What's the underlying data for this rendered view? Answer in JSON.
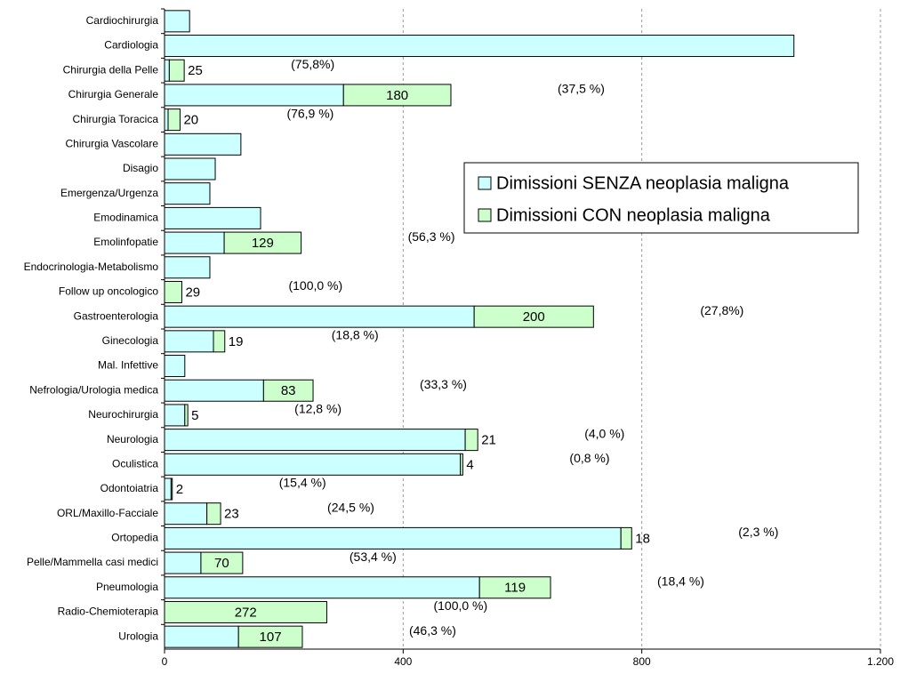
{
  "chart_data": {
    "type": "bar",
    "orientation": "horizontal",
    "stacked": true,
    "categories": [
      "Cardiochirurgia",
      "Cardiologia",
      "Chirurgia della Pelle",
      "Chirurgia Generale",
      "Chirurgia Toracica",
      "Chirurgia Vascolare",
      "Disagio",
      "Emergenza/Urgenza",
      "Emodinamica",
      "Emolinfopatie",
      "Endocrinologia-Metabolismo",
      "Follow up oncologico",
      "Gastroenterologia",
      "Ginecologia",
      "Mal. Infettive",
      "Nefrologia/Urologia medica",
      "Neurochirurgia",
      "Neurologia",
      "Oculistica",
      "Odontoiatria",
      "ORL/Maxillo-Facciale",
      "Ortopedia",
      "Pelle/Mammella casi medici",
      "Pneumologia",
      "Radio-Chemioterapia",
      "Urologia"
    ],
    "series": [
      {
        "name": "Dimissioni SENZA neoplasia maligna",
        "color": "#ccffff",
        "values": [
          42,
          1055,
          8,
          300,
          6,
          128,
          85,
          76,
          161,
          100,
          76,
          0,
          519,
          82,
          34,
          166,
          34,
          504,
          496,
          11,
          71,
          765,
          61,
          528,
          0,
          124
        ]
      },
      {
        "name": "Dimissioni CON neoplasia maligna",
        "color": "#ccffcc",
        "values": [
          null,
          null,
          25,
          180,
          20,
          null,
          null,
          null,
          null,
          129,
          null,
          29,
          200,
          19,
          null,
          83,
          5,
          21,
          4,
          2,
          23,
          18,
          70,
          119,
          272,
          107
        ]
      }
    ],
    "percent_labels": [
      null,
      null,
      "(75,8%)",
      "(37,5 %)",
      "(76,9 %)",
      null,
      null,
      null,
      null,
      "(56,3 %)",
      null,
      "(100,0 %)",
      "(27,8%)",
      "(18,8 %)",
      null,
      "(33,3 %)",
      "(12,8 %)",
      "(4,0 %)",
      "(0,8 %)",
      "(15,4 %)",
      "(24,5 %)",
      "(2,3 %)",
      "(53,4 %)",
      "(18,4 %)",
      "(100,0 %)",
      "(46,3 %)"
    ],
    "xlim": [
      0,
      1200
    ],
    "xticks": [
      0,
      400,
      800,
      {
        "value": 1200,
        "label": "1.200"
      }
    ],
    "grid": true
  }
}
